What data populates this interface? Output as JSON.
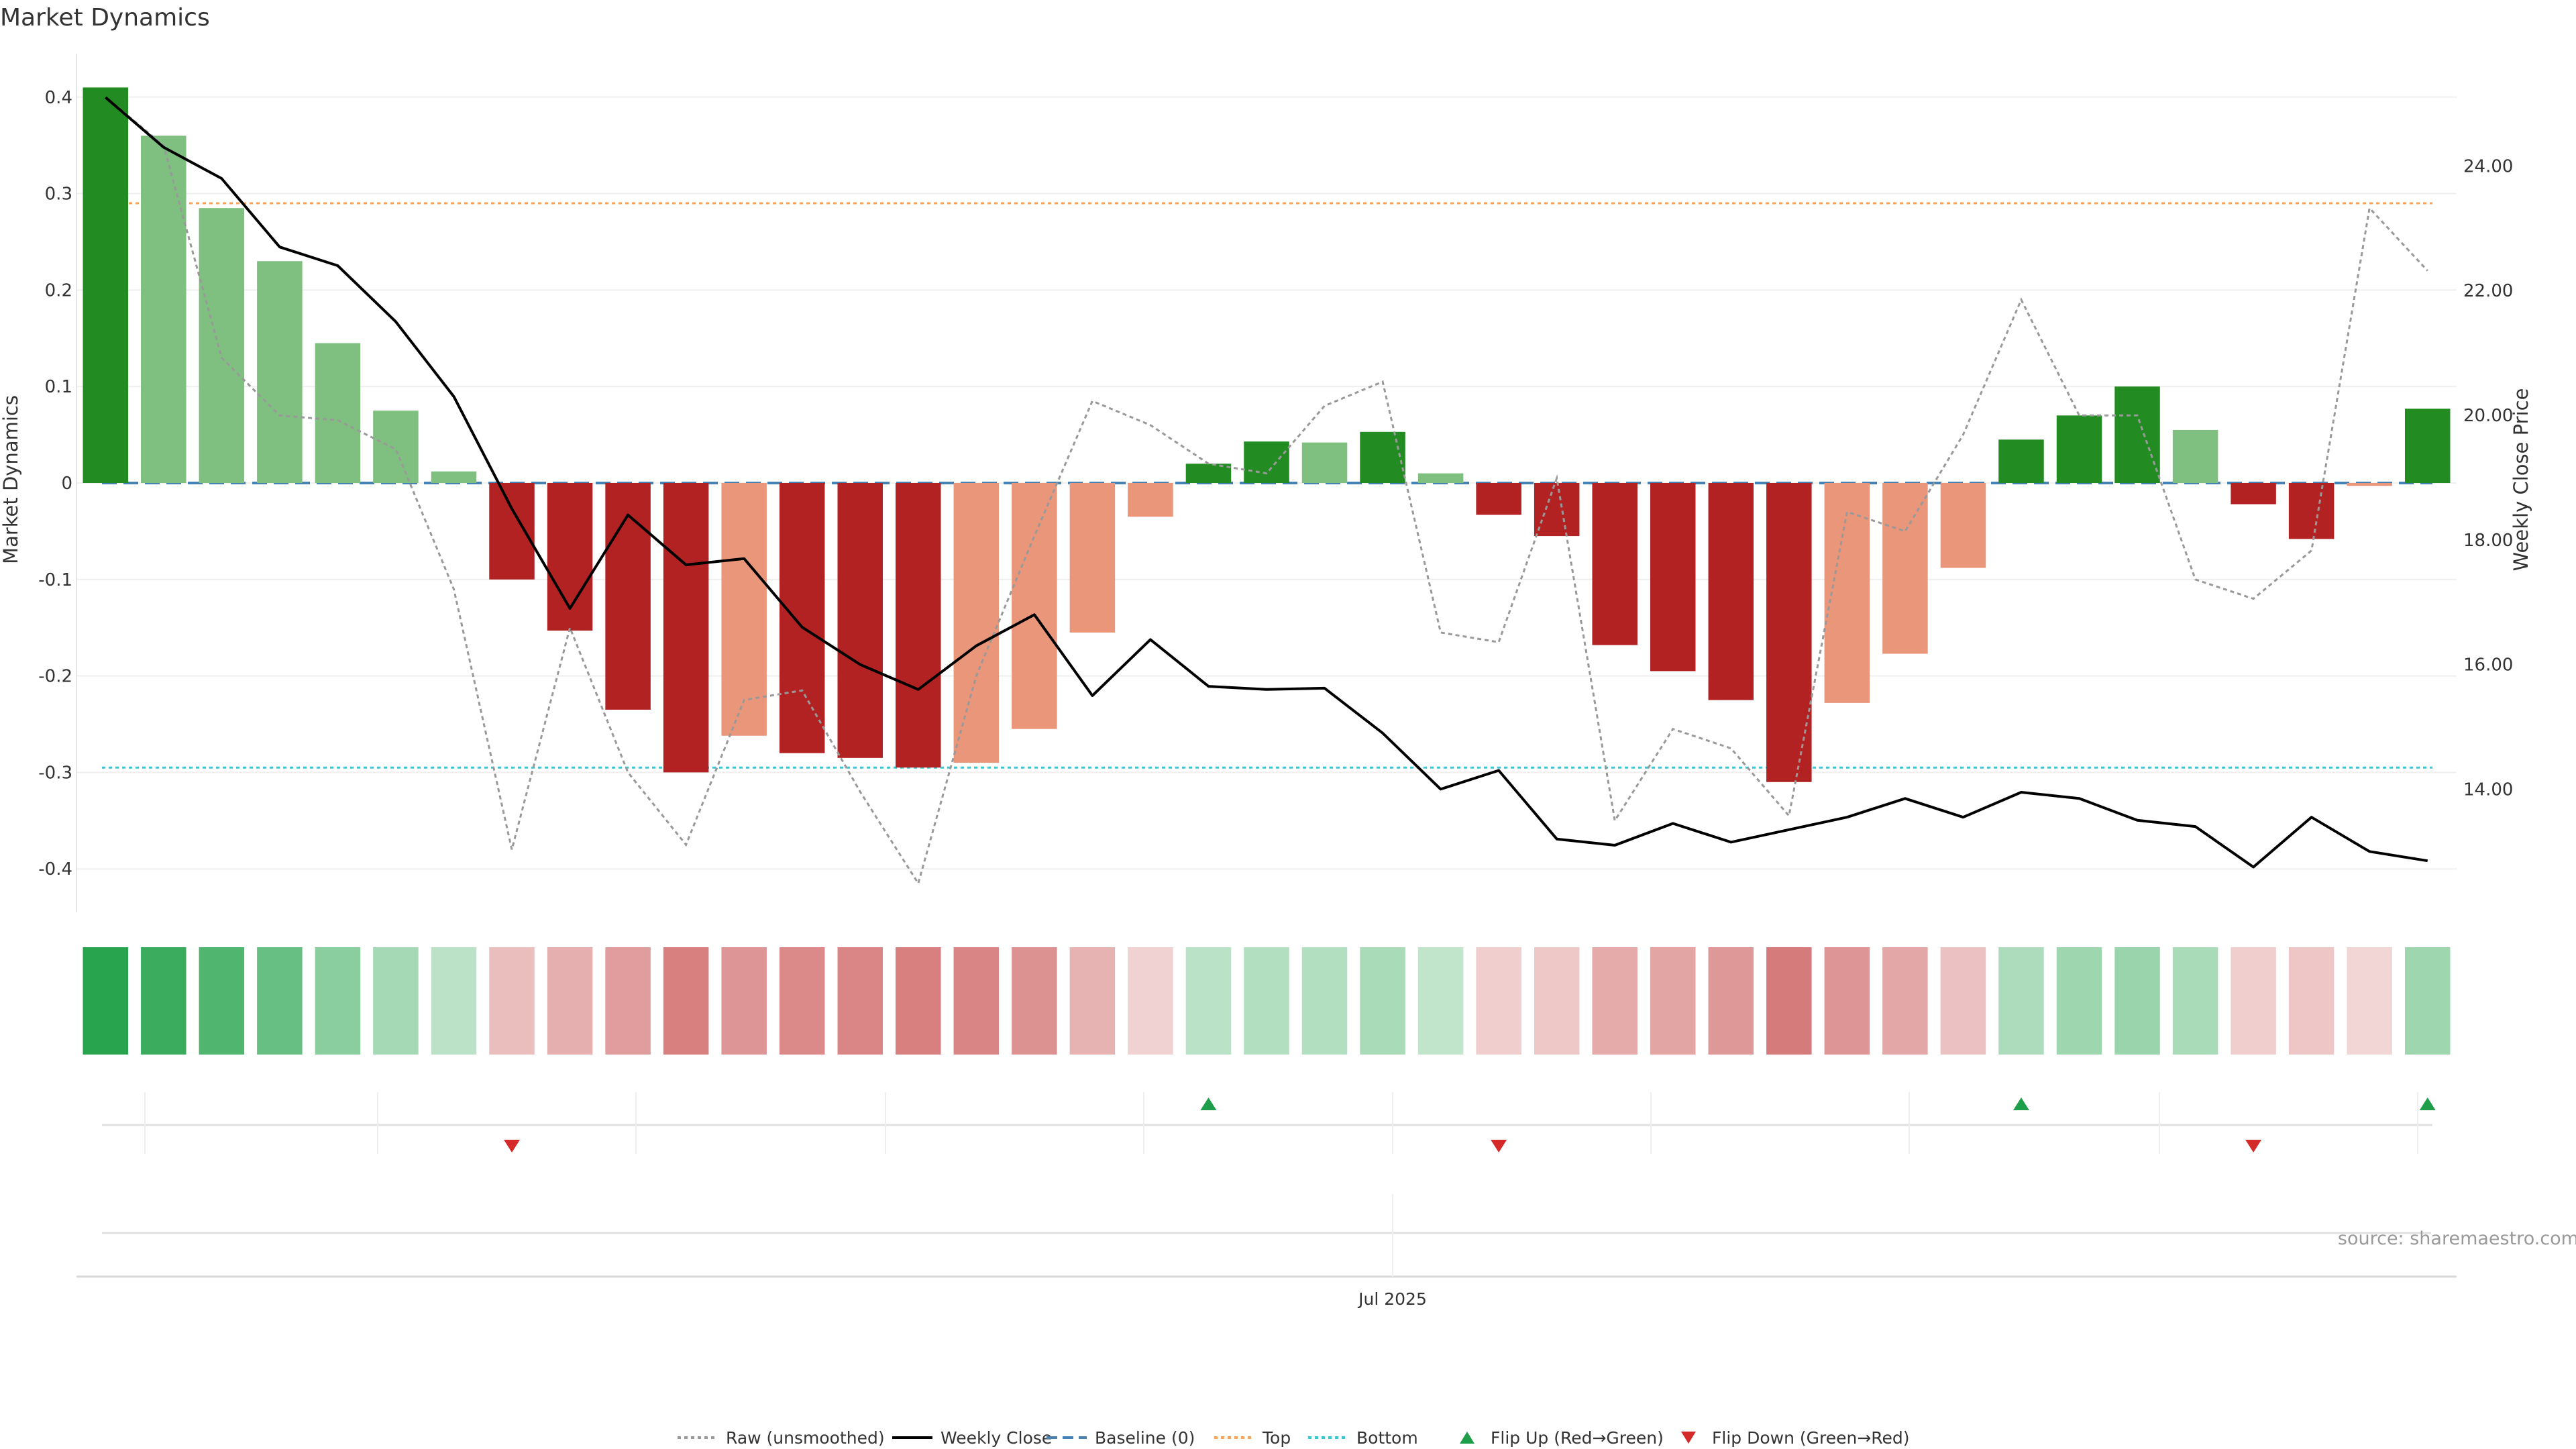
{
  "chart_data": {
    "type": "bar",
    "title": "Market Dynamics",
    "ylabel": "Market Dynamics",
    "y2label": "Weekly Close Price",
    "xtick_label": "Jul 2025",
    "source": "source: sharemaestro.com",
    "ylim": [
      -0.44,
      0.44
    ],
    "y2lim": [
      12.4,
      25.3
    ],
    "yticks": [
      {
        "value": 0.4,
        "label": "0.4"
      },
      {
        "value": 0.3,
        "label": "0.3"
      },
      {
        "value": 0.2,
        "label": "0.2"
      },
      {
        "value": 0.1,
        "label": "0.1"
      },
      {
        "value": 0,
        "label": "0"
      },
      {
        "value": -0.1,
        "label": "-0.1"
      },
      {
        "value": -0.2,
        "label": "-0.2"
      },
      {
        "value": -0.3,
        "label": "-0.3"
      },
      {
        "value": -0.4,
        "label": "-0.4"
      }
    ],
    "y2ticks": [
      {
        "value": 24,
        "label": "24.00"
      },
      {
        "value": 22,
        "label": "22.00"
      },
      {
        "value": 20,
        "label": "20.00"
      },
      {
        "value": 18,
        "label": "18.00"
      },
      {
        "value": 16,
        "label": "16.00"
      },
      {
        "value": 14,
        "label": "14.00"
      }
    ],
    "reference_lines": {
      "baseline": 0,
      "top": 0.29,
      "bottom": -0.295
    },
    "bars": [
      0.41,
      0.36,
      0.285,
      0.23,
      0.145,
      0.075,
      0.012,
      -0.1,
      -0.153,
      -0.235,
      -0.3,
      -0.262,
      -0.28,
      -0.285,
      -0.295,
      -0.29,
      -0.255,
      -0.155,
      -0.035,
      0.02,
      0.043,
      0.042,
      0.053,
      0.01,
      -0.033,
      -0.055,
      -0.168,
      -0.195,
      -0.225,
      -0.31,
      -0.228,
      -0.177,
      -0.088,
      0.045,
      0.07,
      0.1,
      0.055,
      -0.022,
      -0.058,
      -0.003,
      0.077
    ],
    "bar_strength": [
      "strong",
      "light",
      "light",
      "light",
      "light",
      "light",
      "light",
      "strong",
      "strong",
      "strong",
      "strong",
      "light",
      "strong",
      "strong",
      "strong",
      "light",
      "light",
      "light",
      "light",
      "strong",
      "strong",
      "light",
      "strong",
      "light",
      "strong",
      "strong",
      "strong",
      "strong",
      "strong",
      "strong",
      "light",
      "light",
      "light",
      "strong",
      "strong",
      "strong",
      "light",
      "strong",
      "strong",
      "light",
      "strong"
    ],
    "raw_unsmoothed": [
      0.4,
      0.35,
      0.13,
      0.07,
      0.065,
      0.035,
      -0.11,
      -0.38,
      -0.15,
      -0.3,
      -0.375,
      -0.225,
      -0.215,
      -0.32,
      -0.415,
      -0.2,
      -0.055,
      0.085,
      0.06,
      0.02,
      0.01,
      0.08,
      0.105,
      -0.155,
      -0.165,
      0.005,
      -0.35,
      -0.255,
      -0.275,
      -0.345,
      -0.03,
      -0.05,
      0.05,
      0.19,
      0.07,
      0.07,
      -0.1,
      -0.12,
      -0.07,
      0.285,
      0.22
    ],
    "weekly_close": [
      25.1,
      24.3,
      23.8,
      22.7,
      22.4,
      21.5,
      20.3,
      18.5,
      16.9,
      18.4,
      17.6,
      17.7,
      16.6,
      16.0,
      15.6,
      16.3,
      16.8,
      15.5,
      16.4,
      15.65,
      15.6,
      15.62,
      14.9,
      14.0,
      14.3,
      13.2,
      13.1,
      13.45,
      13.15,
      13.35,
      13.55,
      13.85,
      13.55,
      13.95,
      13.85,
      13.5,
      13.4,
      12.75,
      13.55,
      13.0,
      12.85
    ],
    "heat_strip": [
      0.95,
      0.85,
      0.75,
      0.62,
      0.45,
      0.32,
      0.2,
      -0.32,
      -0.42,
      -0.55,
      -0.75,
      -0.6,
      -0.68,
      -0.7,
      -0.75,
      -0.72,
      -0.62,
      -0.4,
      -0.18,
      0.22,
      0.25,
      0.25,
      0.3,
      0.18,
      -0.2,
      -0.25,
      -0.45,
      -0.5,
      -0.58,
      -0.78,
      -0.6,
      -0.48,
      -0.3,
      0.28,
      0.35,
      0.38,
      0.3,
      -0.2,
      -0.26,
      -0.16,
      0.35
    ],
    "flips": [
      {
        "index": 7,
        "direction": "down"
      },
      {
        "index": 19,
        "direction": "up"
      },
      {
        "index": 24,
        "direction": "down"
      },
      {
        "index": 33,
        "direction": "up"
      },
      {
        "index": 37,
        "direction": "down"
      },
      {
        "index": 40,
        "direction": "up"
      }
    ],
    "legend": [
      {
        "label": "Raw (unsmoothed)",
        "kind": "dotted-line",
        "color": "#999999"
      },
      {
        "label": "Weekly Close",
        "kind": "line",
        "color": "#000000"
      },
      {
        "label": "Baseline (0)",
        "kind": "dashed-line",
        "color": "#4682b4"
      },
      {
        "label": "Top",
        "kind": "dotted-line",
        "color": "#f4a460"
      },
      {
        "label": "Bottom",
        "kind": "dotted-line",
        "color": "#40c4d0"
      },
      {
        "label": "Flip Up (Red→Green)",
        "kind": "triangle-up",
        "color": "#1e9e4a"
      },
      {
        "label": "Flip Down (Green→Red)",
        "kind": "triangle-down",
        "color": "#d42a2a"
      }
    ],
    "colors": {
      "strong_green": "#228b22",
      "light_green": "#7fbf7f",
      "strong_red": "#b22222",
      "light_red": "#e9967a",
      "weekly_close": "#000000",
      "raw": "#999999",
      "baseline": "#4682b4",
      "top": "#f4a460",
      "bottom": "#40c4d0",
      "flip_up": "#1e9e4a",
      "flip_down": "#d42a2a"
    },
    "grid": true,
    "legend_position": "bottom-center"
  }
}
